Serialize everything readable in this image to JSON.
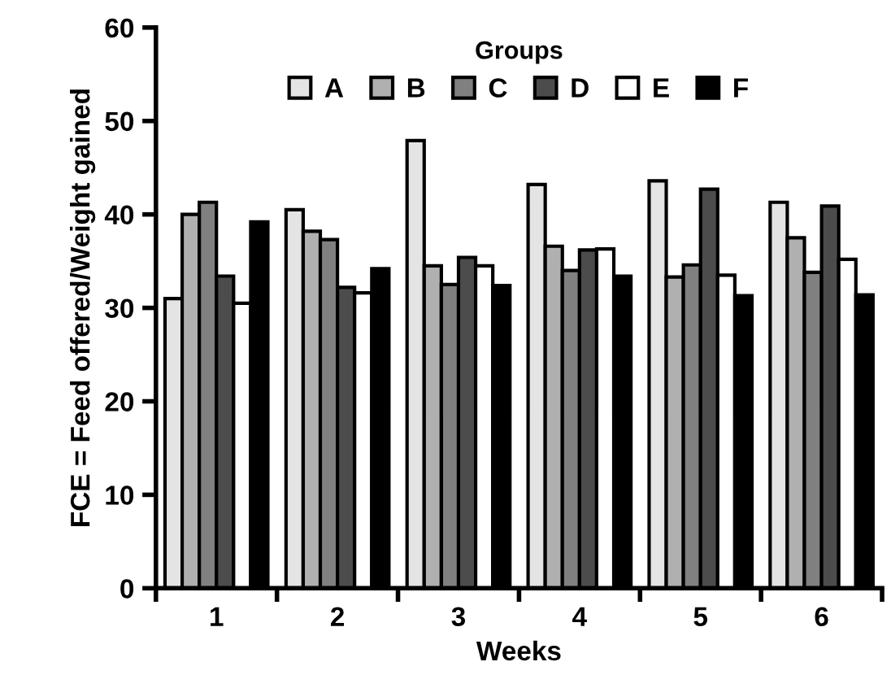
{
  "chart_data": {
    "type": "bar",
    "xlabel": "Weeks",
    "ylabel": "FCE = Feed offered/Weight gained",
    "legend_title": "Groups",
    "legend": "top",
    "categories": [
      "1",
      "2",
      "3",
      "4",
      "5",
      "6"
    ],
    "series": [
      {
        "name": "A",
        "color": "#e4e4e4",
        "values": [
          31.0,
          40.5,
          47.9,
          43.2,
          43.6,
          41.3
        ]
      },
      {
        "name": "B",
        "color": "#b0b0b0",
        "values": [
          40.0,
          38.2,
          34.5,
          36.6,
          33.3,
          37.5
        ]
      },
      {
        "name": "C",
        "color": "#808080",
        "values": [
          41.3,
          37.3,
          32.5,
          34.0,
          34.6,
          33.8
        ]
      },
      {
        "name": "D",
        "color": "#4c4c4c",
        "values": [
          33.4,
          32.2,
          35.4,
          36.2,
          42.7,
          40.9
        ]
      },
      {
        "name": "E",
        "color": "#ffffff",
        "values": [
          30.5,
          31.6,
          34.5,
          36.3,
          33.5,
          35.2
        ]
      },
      {
        "name": "F",
        "color": "#000000",
        "values": [
          39.2,
          34.2,
          32.4,
          33.4,
          31.3,
          31.4
        ]
      }
    ],
    "ylim": [
      0,
      60
    ],
    "yticks": [
      0,
      10,
      20,
      30,
      40,
      50,
      60
    ],
    "grid": false
  }
}
